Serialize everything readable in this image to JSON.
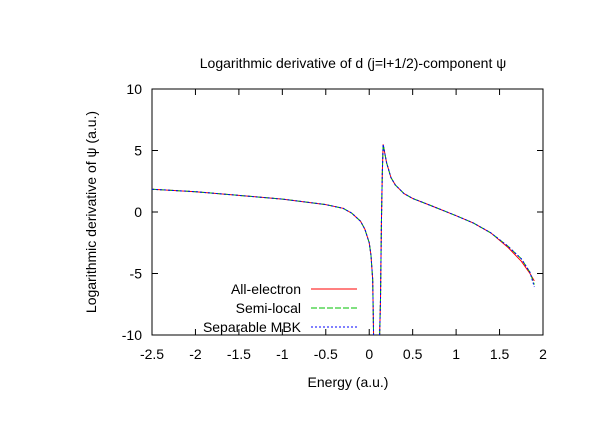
{
  "chart_data": {
    "type": "line",
    "title": "Logarithmic derivative of d (j=l+1/2)-component ψ",
    "xlabel": "Energy (a.u.)",
    "ylabel": "Logarithmic derivative of ψ (a.u.)",
    "xlim": [
      -2.5,
      2.0
    ],
    "ylim": [
      -10,
      10
    ],
    "x_ticks": [
      "-2.5",
      "-2",
      "-1.5",
      "-1",
      "-0.5",
      "0",
      "0.5",
      "1",
      "1.5",
      "2"
    ],
    "y_ticks": [
      "10",
      "5",
      "0",
      "-5",
      "-10"
    ],
    "grid": false,
    "legend_position": "bottom-left",
    "colors": {
      "All-electron": "#ff0000",
      "Semi-local": "#00c000",
      "Separable MBK": "#0000ff"
    },
    "series": [
      {
        "name": "All-electron",
        "segments": [
          [
            [
              -2.5,
              1.85
            ],
            [
              -2.0,
              1.65
            ],
            [
              -1.5,
              1.35
            ],
            [
              -1.0,
              1.05
            ],
            [
              -0.5,
              0.6
            ],
            [
              -0.3,
              0.3
            ],
            [
              -0.2,
              -0.1
            ],
            [
              -0.1,
              -0.75
            ],
            [
              -0.05,
              -1.4
            ],
            [
              0.0,
              -2.5
            ],
            [
              0.02,
              -3.5
            ],
            [
              0.04,
              -5.5
            ],
            [
              0.05,
              -10
            ]
          ],
          [
            [
              0.12,
              -10
            ],
            [
              0.13,
              -7
            ],
            [
              0.14,
              -1
            ],
            [
              0.15,
              3
            ],
            [
              0.16,
              5.5
            ],
            [
              0.2,
              4.0
            ],
            [
              0.25,
              2.8
            ],
            [
              0.3,
              2.2
            ],
            [
              0.4,
              1.5
            ],
            [
              0.5,
              1.1
            ],
            [
              0.7,
              0.55
            ],
            [
              1.0,
              -0.3
            ],
            [
              1.2,
              -0.9
            ],
            [
              1.4,
              -1.7
            ],
            [
              1.6,
              -2.9
            ],
            [
              1.75,
              -4.0
            ],
            [
              1.85,
              -5.0
            ],
            [
              1.9,
              -5.6
            ]
          ]
        ]
      },
      {
        "name": "Semi-local",
        "segments": [
          [
            [
              -2.5,
              1.85
            ],
            [
              -2.0,
              1.65
            ],
            [
              -1.5,
              1.35
            ],
            [
              -1.0,
              1.05
            ],
            [
              -0.5,
              0.6
            ],
            [
              -0.3,
              0.3
            ],
            [
              -0.2,
              -0.1
            ],
            [
              -0.1,
              -0.75
            ],
            [
              -0.05,
              -1.4
            ],
            [
              0.0,
              -2.5
            ],
            [
              0.02,
              -3.5
            ],
            [
              0.04,
              -5.5
            ],
            [
              0.05,
              -10
            ]
          ],
          [
            [
              0.12,
              -10
            ],
            [
              0.13,
              -7
            ],
            [
              0.14,
              -1
            ],
            [
              0.15,
              3
            ],
            [
              0.16,
              5.5
            ],
            [
              0.2,
              4.0
            ],
            [
              0.25,
              2.8
            ],
            [
              0.3,
              2.2
            ],
            [
              0.4,
              1.5
            ],
            [
              0.5,
              1.1
            ],
            [
              0.7,
              0.55
            ],
            [
              1.0,
              -0.3
            ],
            [
              1.2,
              -0.9
            ],
            [
              1.4,
              -1.7
            ],
            [
              1.6,
              -2.8
            ],
            [
              1.75,
              -3.8
            ],
            [
              1.85,
              -4.9
            ],
            [
              1.9,
              -5.9
            ]
          ]
        ]
      },
      {
        "name": "Separable MBK",
        "segments": [
          [
            [
              -2.5,
              1.85
            ],
            [
              -2.0,
              1.65
            ],
            [
              -1.5,
              1.35
            ],
            [
              -1.0,
              1.05
            ],
            [
              -0.5,
              0.6
            ],
            [
              -0.3,
              0.3
            ],
            [
              -0.2,
              -0.1
            ],
            [
              -0.1,
              -0.75
            ],
            [
              -0.05,
              -1.4
            ],
            [
              0.0,
              -2.5
            ],
            [
              0.02,
              -3.5
            ],
            [
              0.04,
              -5.5
            ],
            [
              0.05,
              -10
            ]
          ],
          [
            [
              0.12,
              -10
            ],
            [
              0.13,
              -7
            ],
            [
              0.14,
              -1
            ],
            [
              0.15,
              3
            ],
            [
              0.16,
              5.5
            ],
            [
              0.2,
              4.0
            ],
            [
              0.25,
              2.8
            ],
            [
              0.3,
              2.2
            ],
            [
              0.4,
              1.5
            ],
            [
              0.5,
              1.1
            ],
            [
              0.7,
              0.55
            ],
            [
              1.0,
              -0.3
            ],
            [
              1.2,
              -0.9
            ],
            [
              1.4,
              -1.7
            ],
            [
              1.6,
              -2.8
            ],
            [
              1.75,
              -3.8
            ],
            [
              1.85,
              -4.9
            ],
            [
              1.9,
              -6.1
            ]
          ]
        ]
      }
    ]
  }
}
